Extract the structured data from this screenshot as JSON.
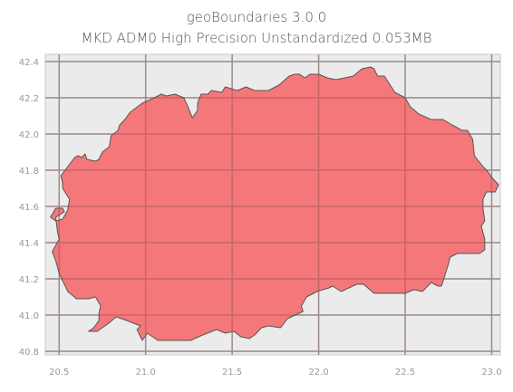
{
  "title_line1": "geoBoundaries 3.0.0",
  "title_line2": "MKD ADM0 High Precision Unstandardized 0.053MB",
  "colors": {
    "background": "#ebebeb",
    "grid": "#b0b0b0",
    "fill": "#f47174",
    "edge": "#555555"
  },
  "chart_data": {
    "type": "map",
    "grid": true,
    "xlim": [
      20.42,
      23.05
    ],
    "ylim": [
      40.78,
      42.44
    ],
    "x_ticks": [
      "20.5",
      "21.0",
      "21.5",
      "22.0",
      "22.5",
      "23.0"
    ],
    "y_ticks": [
      "42.4",
      "42.2",
      "42.0",
      "41.8",
      "41.6",
      "41.4",
      "41.2",
      "41.0",
      "40.8"
    ],
    "polygon": [
      [
        20.59,
        41.87
      ],
      [
        20.61,
        41.88
      ],
      [
        20.63,
        41.87
      ],
      [
        20.65,
        41.89
      ],
      [
        20.66,
        41.86
      ],
      [
        20.71,
        41.85
      ],
      [
        20.73,
        41.86
      ],
      [
        20.75,
        41.9
      ],
      [
        20.79,
        41.93
      ],
      [
        20.8,
        41.99
      ],
      [
        20.84,
        42.02
      ],
      [
        20.85,
        42.05
      ],
      [
        20.88,
        42.08
      ],
      [
        20.91,
        42.12
      ],
      [
        20.98,
        42.17
      ],
      [
        21.05,
        42.2
      ],
      [
        21.09,
        42.22
      ],
      [
        21.12,
        42.21
      ],
      [
        21.17,
        42.22
      ],
      [
        21.22,
        42.2
      ],
      [
        21.24,
        42.16
      ],
      [
        21.27,
        42.09
      ],
      [
        21.3,
        42.13
      ],
      [
        21.3,
        42.17
      ],
      [
        21.32,
        42.22
      ],
      [
        21.36,
        42.22
      ],
      [
        21.38,
        42.24
      ],
      [
        21.44,
        42.23
      ],
      [
        21.46,
        42.26
      ],
      [
        21.53,
        42.24
      ],
      [
        21.58,
        42.26
      ],
      [
        21.63,
        42.24
      ],
      [
        21.68,
        42.24
      ],
      [
        21.71,
        42.24
      ],
      [
        21.77,
        42.27
      ],
      [
        21.83,
        42.32
      ],
      [
        21.86,
        42.33
      ],
      [
        21.89,
        42.33
      ],
      [
        21.92,
        42.31
      ],
      [
        21.95,
        42.33
      ],
      [
        21.97,
        42.33
      ],
      [
        22.0,
        42.33
      ],
      [
        22.05,
        42.31
      ],
      [
        22.1,
        42.3
      ],
      [
        22.15,
        42.31
      ],
      [
        22.2,
        42.32
      ],
      [
        22.25,
        42.36
      ],
      [
        22.3,
        42.37
      ],
      [
        22.32,
        42.36
      ],
      [
        22.34,
        42.32
      ],
      [
        22.38,
        42.32
      ],
      [
        22.44,
        42.23
      ],
      [
        22.5,
        42.2
      ],
      [
        22.53,
        42.15
      ],
      [
        22.58,
        42.11
      ],
      [
        22.65,
        42.08
      ],
      [
        22.72,
        42.08
      ],
      [
        22.77,
        42.05
      ],
      [
        22.83,
        42.02
      ],
      [
        22.86,
        42.02
      ],
      [
        22.89,
        41.97
      ],
      [
        22.9,
        41.88
      ],
      [
        22.95,
        41.82
      ],
      [
        22.98,
        41.79
      ],
      [
        23.0,
        41.76
      ],
      [
        23.04,
        41.72
      ],
      [
        23.02,
        41.68
      ],
      [
        22.97,
        41.68
      ],
      [
        22.95,
        41.64
      ],
      [
        22.95,
        41.59
      ],
      [
        22.96,
        41.52
      ],
      [
        22.94,
        41.49
      ],
      [
        22.96,
        41.42
      ],
      [
        22.96,
        41.36
      ],
      [
        22.93,
        41.34
      ],
      [
        22.87,
        41.34
      ],
      [
        22.8,
        41.34
      ],
      [
        22.76,
        41.32
      ],
      [
        22.75,
        41.28
      ],
      [
        22.73,
        41.22
      ],
      [
        22.71,
        41.16
      ],
      [
        22.69,
        41.16
      ],
      [
        22.65,
        41.18
      ],
      [
        22.6,
        41.13
      ],
      [
        22.55,
        41.14
      ],
      [
        22.5,
        41.12
      ],
      [
        22.46,
        41.12
      ],
      [
        22.41,
        41.12
      ],
      [
        22.37,
        41.12
      ],
      [
        22.32,
        41.12
      ],
      [
        22.26,
        41.17
      ],
      [
        22.22,
        41.17
      ],
      [
        22.13,
        41.13
      ],
      [
        22.08,
        41.16
      ],
      [
        22.06,
        41.15
      ],
      [
        21.99,
        41.13
      ],
      [
        21.93,
        41.1
      ],
      [
        21.9,
        41.05
      ],
      [
        21.91,
        41.02
      ],
      [
        21.82,
        40.98
      ],
      [
        21.78,
        40.93
      ],
      [
        21.71,
        40.94
      ],
      [
        21.67,
        40.93
      ],
      [
        21.63,
        40.89
      ],
      [
        21.6,
        40.87
      ],
      [
        21.55,
        40.88
      ],
      [
        21.51,
        40.91
      ],
      [
        21.46,
        40.9
      ],
      [
        21.41,
        40.92
      ],
      [
        21.33,
        40.89
      ],
      [
        21.26,
        40.86
      ],
      [
        21.21,
        40.86
      ],
      [
        21.13,
        40.86
      ],
      [
        21.07,
        40.86
      ],
      [
        21.01,
        40.9
      ],
      [
        20.98,
        40.86
      ],
      [
        20.95,
        40.92
      ],
      [
        20.97,
        40.94
      ],
      [
        20.89,
        40.97
      ],
      [
        20.83,
        40.99
      ],
      [
        20.78,
        40.95
      ],
      [
        20.72,
        40.91
      ],
      [
        20.67,
        40.91
      ],
      [
        20.7,
        40.93
      ],
      [
        20.73,
        40.97
      ],
      [
        20.73,
        41.01
      ],
      [
        20.74,
        41.05
      ],
      [
        20.71,
        41.1
      ],
      [
        20.67,
        41.09
      ],
      [
        20.6,
        41.09
      ],
      [
        20.55,
        41.13
      ],
      [
        20.5,
        41.23
      ],
      [
        20.48,
        41.3
      ],
      [
        20.46,
        41.35
      ],
      [
        20.5,
        41.42
      ],
      [
        20.49,
        41.46
      ],
      [
        20.48,
        41.54
      ],
      [
        20.53,
        41.57
      ],
      [
        20.52,
        41.59
      ],
      [
        20.48,
        41.59
      ],
      [
        20.45,
        41.54
      ],
      [
        20.48,
        41.52
      ],
      [
        20.52,
        41.53
      ],
      [
        20.55,
        41.58
      ],
      [
        20.56,
        41.64
      ],
      [
        20.52,
        41.7
      ],
      [
        20.52,
        41.73
      ],
      [
        20.51,
        41.77
      ],
      [
        20.55,
        41.82
      ],
      [
        20.59,
        41.87
      ]
    ]
  }
}
